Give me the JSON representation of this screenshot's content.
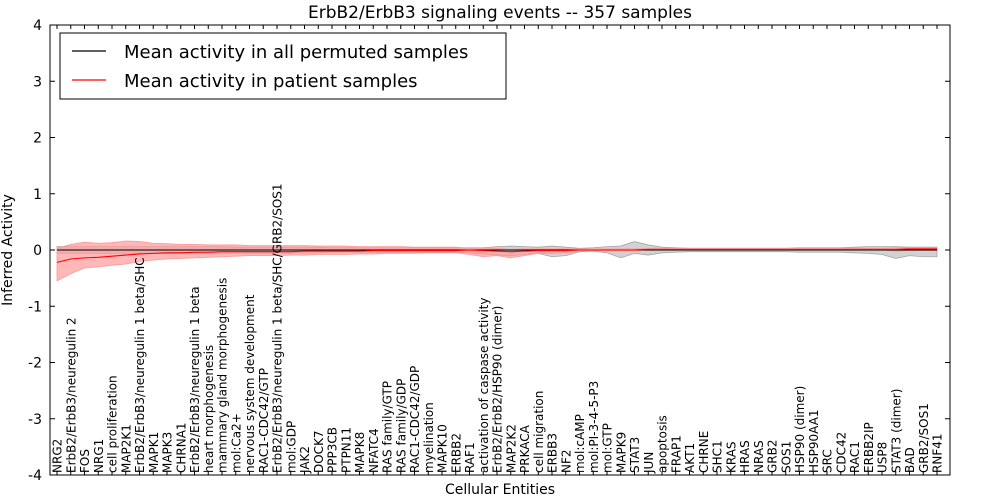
{
  "chart_data": {
    "type": "line",
    "title": "ErbB2/ErbB3 signaling events -- 357 samples",
    "xlabel": "Cellular Entities",
    "ylabel": "Inferred Activity",
    "ylim": [
      -4,
      4
    ],
    "yticks": [
      -4,
      -3,
      -2,
      -1,
      0,
      1,
      2,
      3,
      4
    ],
    "legend": {
      "placement": "top-left",
      "entries": [
        {
          "label": "Mean activity in all permuted samples",
          "color": "#000000"
        },
        {
          "label": "Mean activity in patient samples",
          "color": "#ff0000"
        }
      ]
    },
    "categories": [
      "NRG2",
      "ErbB2/ErbB3/neuregulin 2",
      "FOS",
      "NRG1",
      "cell proliferation",
      "MAP2K1",
      "ErbB2/ErbB3/neuregulin 1 beta/SHC",
      "MAPK1",
      "MAPK3",
      "CHRNA1",
      "ErbB2/ErbB3/neuregulin 1 beta",
      "heart morphogenesis",
      "mammary gland morphogenesis",
      "mol:Ca2+",
      "nervous system development",
      "RAC1-CDC42/GTP",
      "ErbB2/ErbB3/neuregulin 1 beta/SHC/GRB2/SOS1",
      "mol:GDP",
      "JAK2",
      "DOCK7",
      "PPP3CB",
      "PTPN11",
      "MAPK8",
      "NFATC4",
      "RAS family/GTP",
      "RAS family/GDP",
      "RAC1-CDC42/GDP",
      "myelination",
      "MAPK10",
      "ERBB2",
      "RAF1",
      "activation of caspase activity",
      "ErbB2/ErbB2/HSP90 (dimer)",
      "MAP2K2",
      "PRKACA",
      "cell migration",
      "ERBB3",
      "NF2",
      "mol:cAMP",
      "mol:PI-3-4-5-P3",
      "mol:GTP",
      "MAPK9",
      "STAT3",
      "JUN",
      "apoptosis",
      "FRAP1",
      "AKT1",
      "CHRNE",
      "SHC1",
      "KRAS",
      "HRAS",
      "NRAS",
      "GRB2",
      "SOS1",
      "HSP90 (dimer)",
      "HSP90AA1",
      "SRC",
      "CDC42",
      "RAC1",
      "ERBB2IP",
      "USP8",
      "STAT3 (dimer)",
      "BAD",
      "GRB2/SOS1",
      "RNF41"
    ],
    "series": [
      {
        "name": "Mean activity in all permuted samples",
        "color": "#000000",
        "band_color": "#a6a6a6",
        "values": [
          0,
          0,
          0,
          0,
          0,
          0,
          0,
          0,
          0,
          0,
          0,
          0,
          0,
          0,
          0,
          0,
          0,
          0,
          0,
          0,
          0,
          0,
          0,
          0,
          0,
          0,
          0,
          0,
          0,
          0,
          0,
          0,
          0,
          0,
          0,
          0,
          0,
          0,
          0,
          0,
          0,
          0,
          0,
          0,
          0,
          0,
          0,
          0,
          0,
          0,
          0,
          0,
          0,
          0,
          0,
          0,
          0,
          0,
          0,
          0,
          0,
          0,
          0,
          0,
          0
        ],
        "lower": [
          -0.06,
          -0.06,
          -0.06,
          -0.06,
          -0.06,
          -0.06,
          -0.06,
          -0.06,
          -0.06,
          -0.06,
          -0.06,
          -0.06,
          -0.06,
          -0.05,
          -0.05,
          -0.05,
          -0.05,
          -0.05,
          -0.05,
          -0.05,
          -0.04,
          -0.04,
          -0.04,
          -0.04,
          -0.04,
          -0.04,
          -0.04,
          -0.04,
          -0.04,
          -0.04,
          -0.05,
          -0.07,
          -0.09,
          -0.1,
          -0.08,
          -0.06,
          -0.12,
          -0.1,
          -0.03,
          -0.02,
          -0.05,
          -0.14,
          -0.06,
          -0.09,
          -0.05,
          -0.04,
          -0.03,
          -0.03,
          -0.03,
          -0.03,
          -0.03,
          -0.03,
          -0.03,
          -0.03,
          -0.04,
          -0.04,
          -0.04,
          -0.04,
          -0.05,
          -0.06,
          -0.08,
          -0.15,
          -0.1,
          -0.12,
          -0.12
        ],
        "upper": [
          0.06,
          0.06,
          0.06,
          0.06,
          0.06,
          0.06,
          0.06,
          0.06,
          0.06,
          0.06,
          0.06,
          0.06,
          0.06,
          0.05,
          0.05,
          0.05,
          0.05,
          0.05,
          0.05,
          0.05,
          0.04,
          0.04,
          0.04,
          0.04,
          0.04,
          0.04,
          0.04,
          0.04,
          0.04,
          0.04,
          0.04,
          0.04,
          0.06,
          0.07,
          0.06,
          0.05,
          0.07,
          0.05,
          0.03,
          0.04,
          0.06,
          0.07,
          0.15,
          0.09,
          0.05,
          0.04,
          0.03,
          0.03,
          0.03,
          0.03,
          0.03,
          0.03,
          0.03,
          0.03,
          0.04,
          0.04,
          0.04,
          0.04,
          0.05,
          0.06,
          0.06,
          0.06,
          0.05,
          0.05,
          0.05
        ]
      },
      {
        "name": "Mean activity in patient samples",
        "color": "#ff0000",
        "band_color": "#ff9999",
        "values": [
          -0.22,
          -0.16,
          -0.14,
          -0.13,
          -0.11,
          -0.09,
          -0.07,
          -0.06,
          -0.05,
          -0.05,
          -0.04,
          -0.04,
          -0.03,
          -0.03,
          -0.03,
          -0.03,
          -0.03,
          -0.03,
          -0.02,
          -0.02,
          -0.02,
          -0.02,
          -0.02,
          -0.01,
          -0.01,
          -0.01,
          -0.01,
          -0.01,
          -0.01,
          -0.01,
          0,
          -0.01,
          -0.02,
          -0.03,
          -0.02,
          -0.01,
          -0.01,
          -0.01,
          0,
          0,
          0,
          0,
          0,
          0.01,
          0.01,
          0.01,
          0.01,
          0.01,
          0.01,
          0.01,
          0.01,
          0.01,
          0.01,
          0.01,
          0.01,
          0.01,
          0.01,
          0.01,
          0.01,
          0.01,
          0.01,
          0.01,
          0.02,
          0.02,
          0.02
        ],
        "lower": [
          -0.55,
          -0.42,
          -0.32,
          -0.3,
          -0.27,
          -0.25,
          -0.2,
          -0.18,
          -0.16,
          -0.15,
          -0.14,
          -0.13,
          -0.12,
          -0.11,
          -0.1,
          -0.1,
          -0.1,
          -0.09,
          -0.09,
          -0.08,
          -0.08,
          -0.08,
          -0.07,
          -0.07,
          -0.06,
          -0.06,
          -0.06,
          -0.05,
          -0.05,
          -0.05,
          -0.08,
          -0.12,
          -0.1,
          -0.14,
          -0.1,
          -0.06,
          -0.06,
          -0.05,
          -0.02,
          -0.01,
          -0.01,
          -0.01,
          -0.01,
          0,
          0,
          0,
          0,
          0,
          0,
          0,
          0,
          0,
          0,
          0,
          0,
          0,
          0,
          0,
          0,
          0,
          0,
          -0.02,
          -0.01,
          -0.01,
          -0.01
        ],
        "upper": [
          0.03,
          0.1,
          0.14,
          0.12,
          0.13,
          0.16,
          0.15,
          0.12,
          0.11,
          0.1,
          0.1,
          0.09,
          0.09,
          0.09,
          0.08,
          0.08,
          0.08,
          0.08,
          0.08,
          0.07,
          0.07,
          0.07,
          0.06,
          0.06,
          0.06,
          0.06,
          0.05,
          0.05,
          0.05,
          0.05,
          0.03,
          0.02,
          0.03,
          0.01,
          0.02,
          0.02,
          0.02,
          0.02,
          0.02,
          0.02,
          0.02,
          0.02,
          0.02,
          0.03,
          0.03,
          0.03,
          0.03,
          0.03,
          0.03,
          0.03,
          0.03,
          0.03,
          0.03,
          0.03,
          0.03,
          0.03,
          0.03,
          0.03,
          0.03,
          0.03,
          0.03,
          0.04,
          0.04,
          0.04,
          0.04
        ]
      }
    ]
  }
}
